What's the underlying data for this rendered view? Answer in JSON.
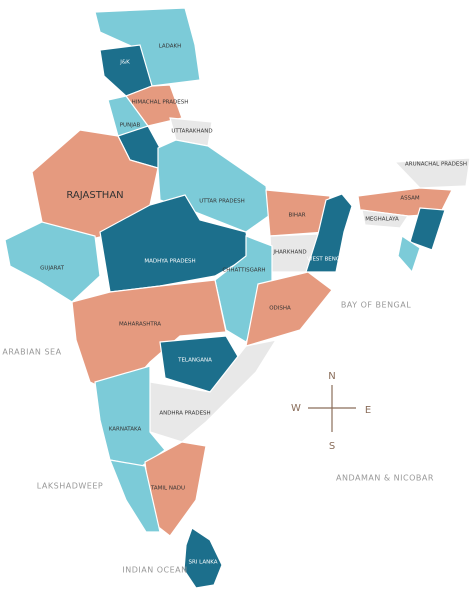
{
  "regions": [
    {
      "label": "LADAKH"
    },
    {
      "label": "J&K"
    },
    {
      "label": "HIMACHAL PRADESH"
    },
    {
      "label": "PUNJAB"
    },
    {
      "label": "UTTARAKHAND"
    },
    {
      "label": "RAJASTHAN"
    },
    {
      "label": "UTTAR PRADESH"
    },
    {
      "label": "BIHAR"
    },
    {
      "label": "ARUNACHAL PRADESH"
    },
    {
      "label": "ASSAM"
    },
    {
      "label": "MEGHALAYA"
    },
    {
      "label": "GUJARAT"
    },
    {
      "label": "MADHYA PRADESH"
    },
    {
      "label": "JHARKHAND"
    },
    {
      "label": "WEST BENGAL"
    },
    {
      "label": "CHHATTISGARH"
    },
    {
      "label": "ODISHA"
    },
    {
      "label": "MAHARASHTRA"
    },
    {
      "label": "TELANGANA"
    },
    {
      "label": "ANDHRA PRADESH"
    },
    {
      "label": "KARNATAKA"
    },
    {
      "label": "TAMIL NADU"
    },
    {
      "label": "SRI LANKA"
    }
  ],
  "seas": [
    {
      "label": "BAY OF BENGAL"
    },
    {
      "label": "ARABIAN SEA"
    },
    {
      "label": "LAKSHADWEEP"
    },
    {
      "label": "ANDAMAN & NICOBAR"
    },
    {
      "label": "INDIAN OCEAN"
    }
  ],
  "compass": {
    "n": "N",
    "s": "S",
    "e": "E",
    "w": "W"
  }
}
